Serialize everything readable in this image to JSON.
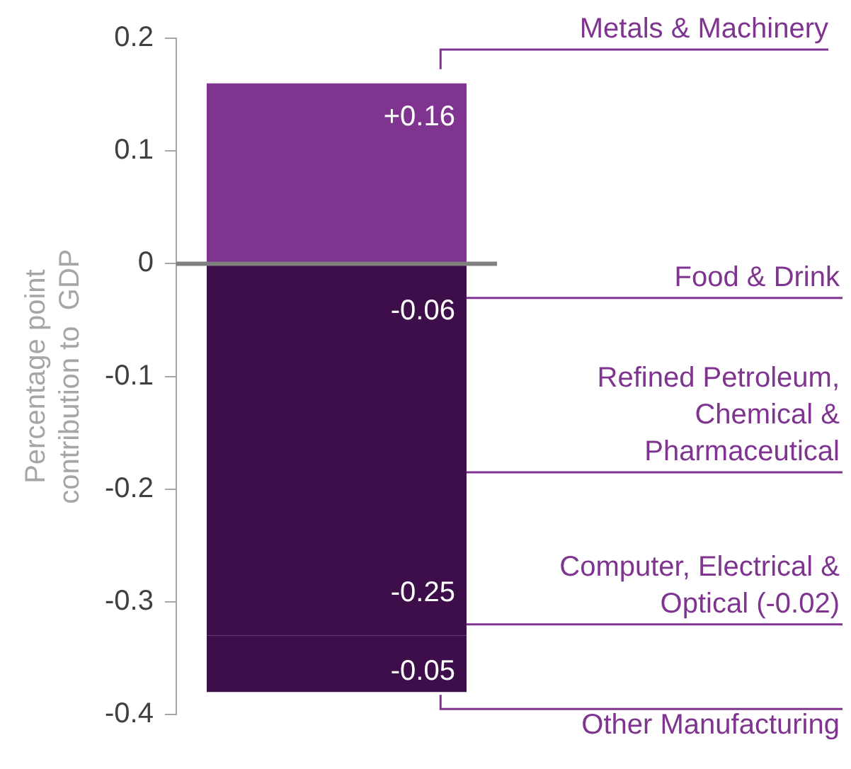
{
  "chart_data": {
    "type": "bar",
    "stacked": true,
    "categories": [
      null
    ],
    "ylabel": "Percentage point contribution to  GDP",
    "ylim": [
      -0.4,
      0.2
    ],
    "yticks": [
      -0.4,
      -0.3,
      -0.2,
      -0.1,
      0,
      0.1,
      0.2
    ],
    "grid": false,
    "legend": false,
    "series": [
      {
        "name": "Metals & Machinery",
        "color": "#7f3590",
        "values": [
          0.16
        ],
        "value_labels": [
          "+0.16"
        ]
      },
      {
        "name": "Food & Drink",
        "color": "#3e0e4a",
        "values": [
          -0.06
        ],
        "value_labels": [
          "-0.06"
        ]
      },
      {
        "name": "Refined Petroleum, Chemical & Pharmaceutical",
        "color": "#3e0e4a",
        "values": [
          -0.25
        ],
        "value_labels": [
          "-0.25"
        ]
      },
      {
        "name": "Computer, Electrical & Optical (-0.02)",
        "color": "#3e0e4a",
        "values": [
          -0.02
        ],
        "value_labels": [
          null
        ]
      },
      {
        "name": "Other Manufacturing",
        "color": "#3e0e4a",
        "values": [
          -0.05
        ],
        "value_labels": [
          "-0.05"
        ]
      }
    ],
    "ref_lines": [
      {
        "axis": "y",
        "value": 0,
        "color": "#808080"
      }
    ]
  }
}
